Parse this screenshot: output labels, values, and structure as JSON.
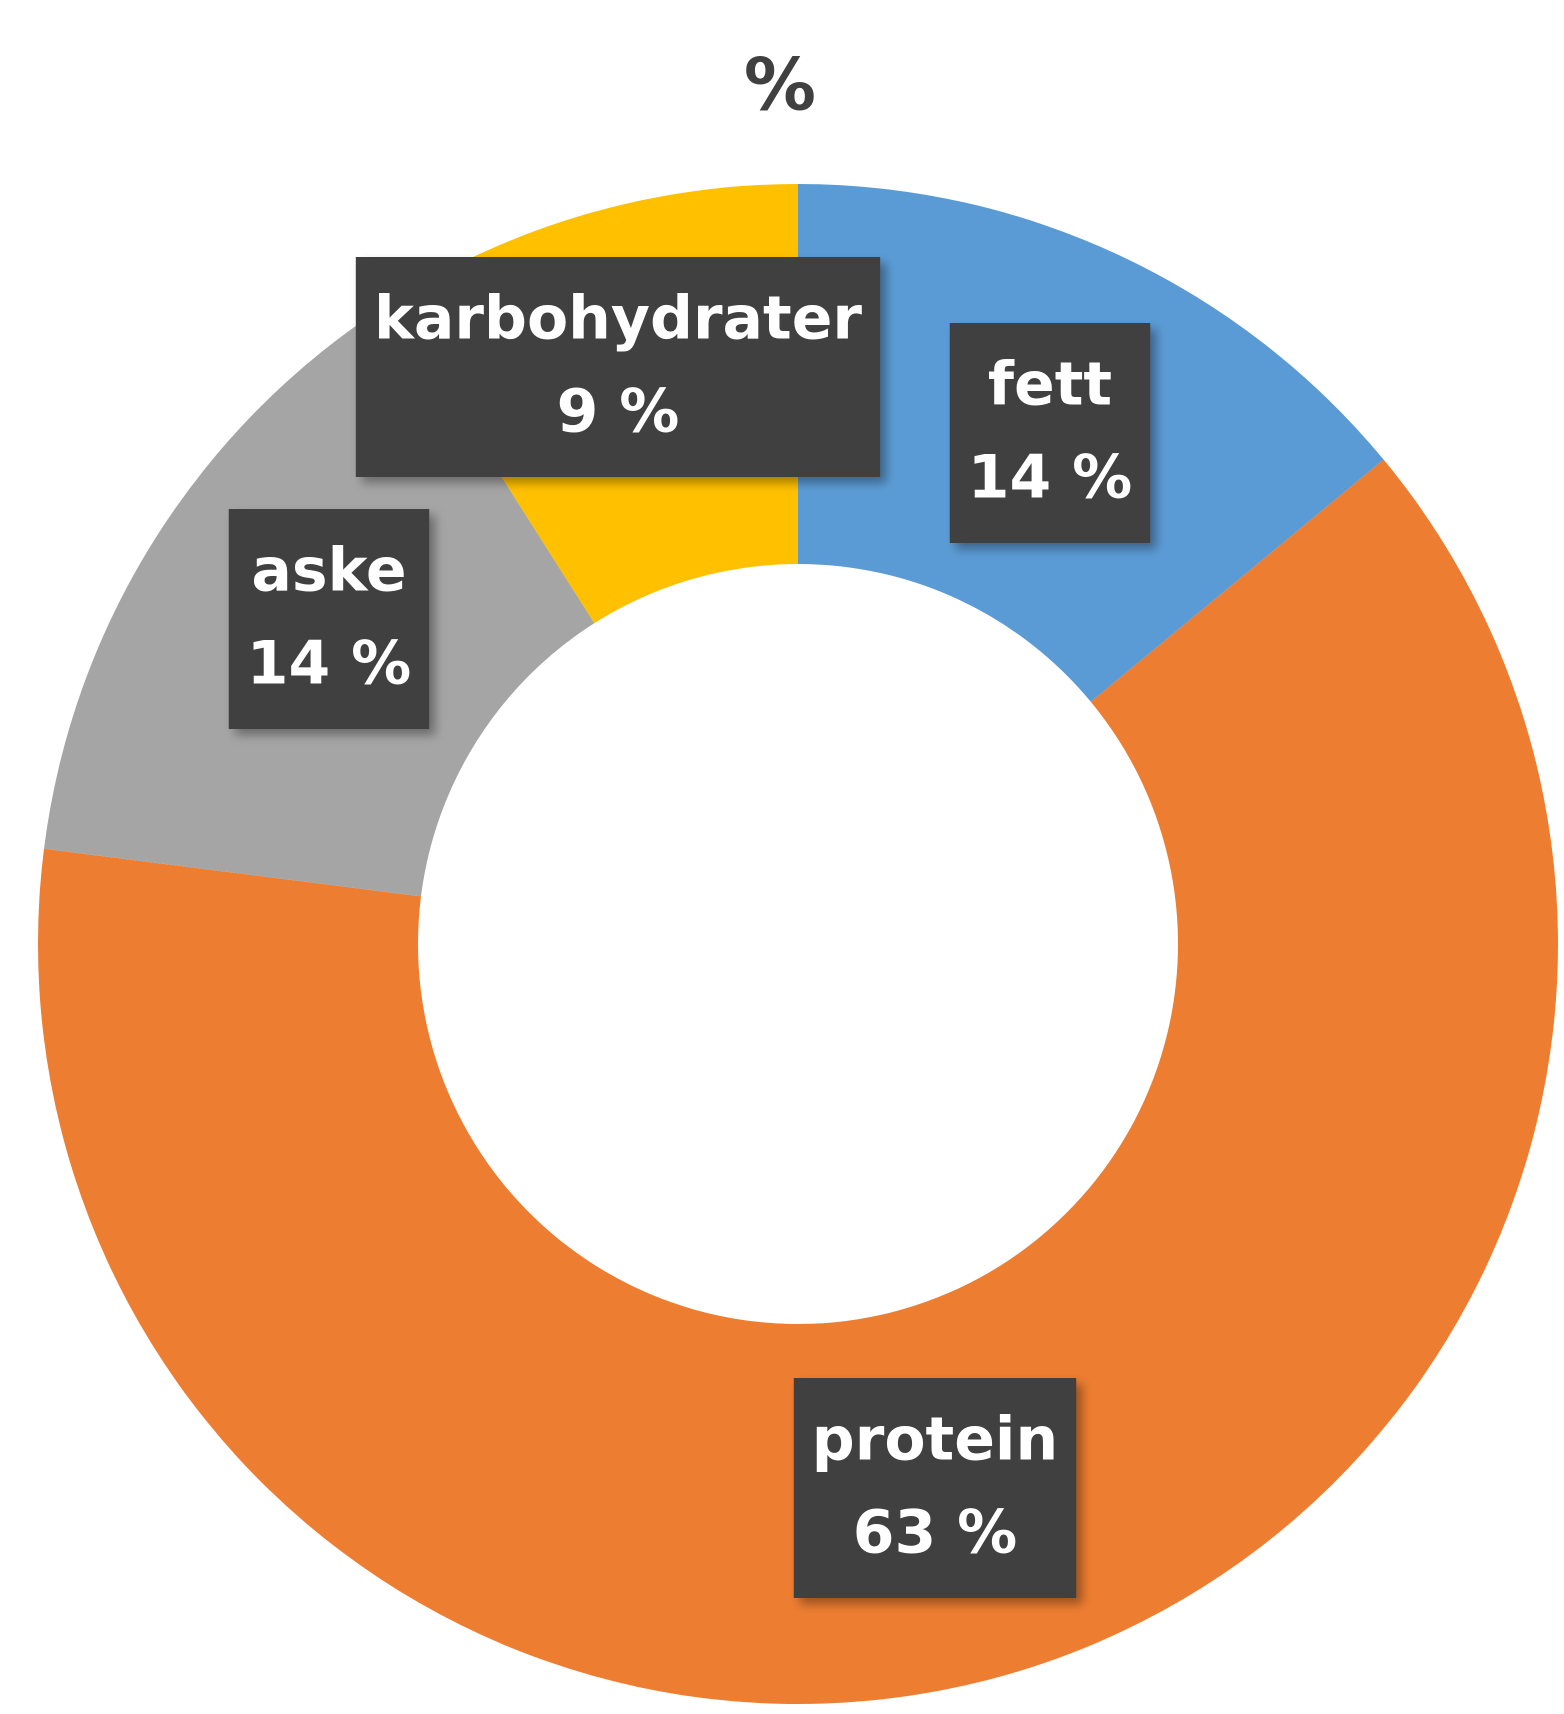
{
  "chart_data": {
    "type": "donut",
    "title": "%",
    "categories": [
      "fett",
      "protein",
      "aske",
      "karbohydrater"
    ],
    "values": [
      14,
      63,
      14,
      9
    ],
    "value_labels": [
      "14 %",
      "63 %",
      "14 %",
      "9 %"
    ],
    "colors": [
      "#5b9bd5",
      "#ed7d31",
      "#a5a5a5",
      "#ffc000"
    ]
  }
}
